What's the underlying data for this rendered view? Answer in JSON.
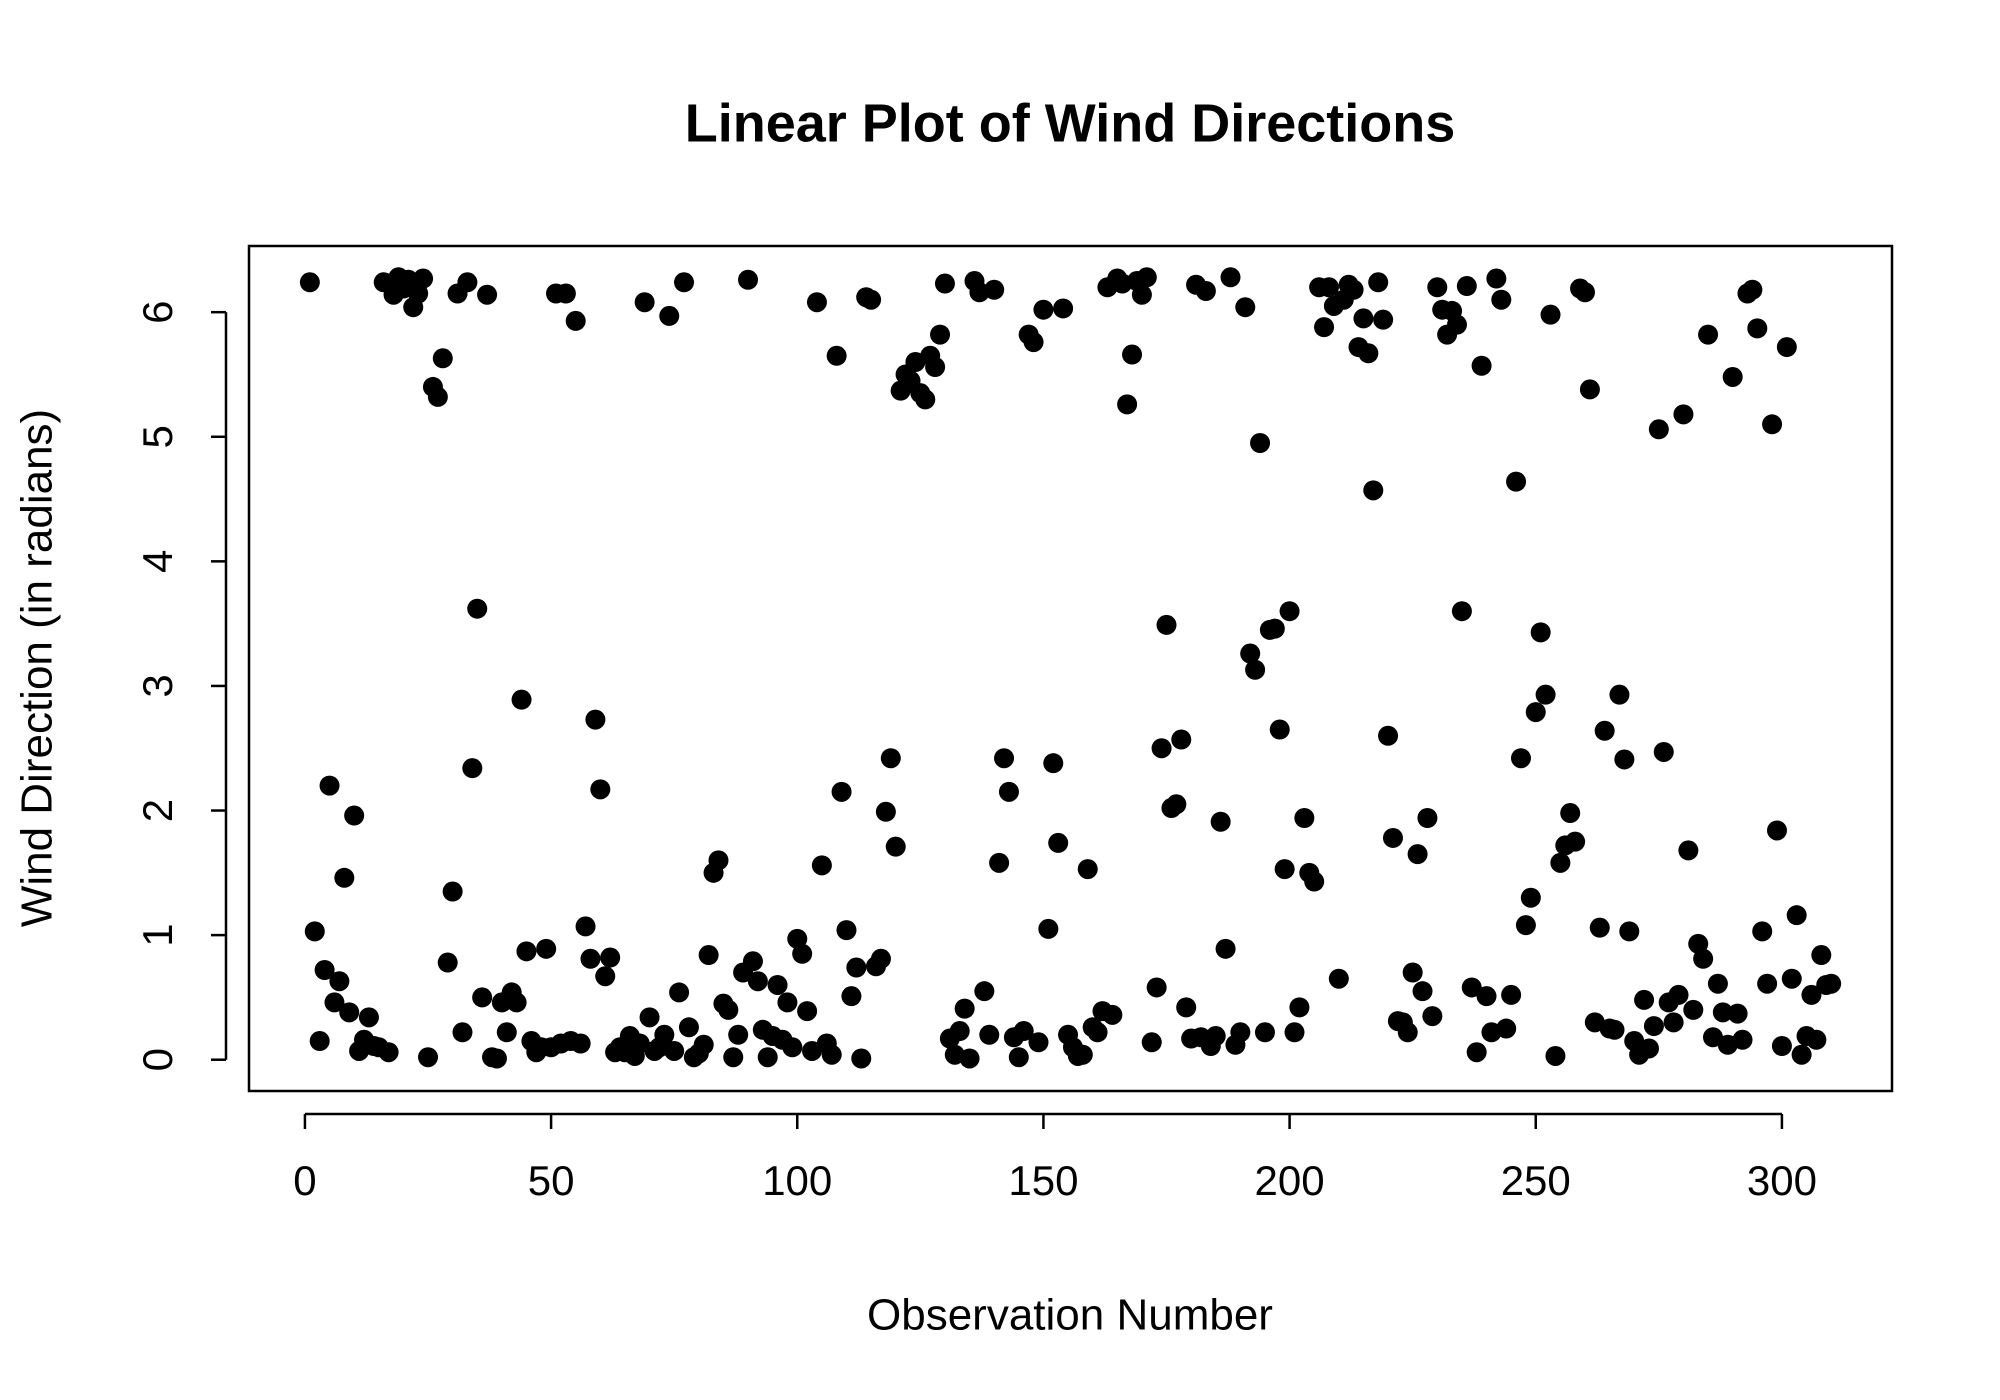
{
  "chart_data": {
    "type": "scatter",
    "title": "Linear Plot of Wind Directions",
    "x_label": "Observation Number",
    "y_label": "Wind Direction (in radians)",
    "xlim": [
      -11.36,
      322.36
    ],
    "ylim": [
      -0.2512,
      6.5312
    ],
    "xticks": [
      0,
      50,
      100,
      150,
      200,
      250,
      300
    ],
    "yticks": [
      0,
      1,
      2,
      3,
      4,
      5,
      6
    ],
    "color": "#000000",
    "x": [
      1,
      2,
      3,
      4,
      5,
      6,
      7,
      8,
      9,
      10,
      11,
      12,
      13,
      14,
      15,
      16,
      17,
      18,
      19,
      20,
      21,
      22,
      23,
      24,
      25,
      26,
      27,
      28,
      29,
      30,
      31,
      32,
      33,
      34,
      35,
      36,
      37,
      38,
      39,
      40,
      41,
      42,
      43,
      44,
      45,
      46,
      47,
      48,
      49,
      50,
      51,
      52,
      53,
      54,
      55,
      56,
      57,
      58,
      59,
      60,
      61,
      62,
      63,
      64,
      65,
      66,
      67,
      68,
      69,
      70,
      71,
      72,
      73,
      74,
      75,
      76,
      77,
      78,
      79,
      80,
      81,
      82,
      83,
      84,
      85,
      86,
      87,
      88,
      89,
      90,
      91,
      92,
      93,
      94,
      95,
      96,
      97,
      98,
      99,
      100,
      101,
      102,
      103,
      104,
      105,
      106,
      107,
      108,
      109,
      110,
      111,
      112,
      113,
      114,
      115,
      116,
      117,
      118,
      119,
      120,
      121,
      122,
      123,
      124,
      125,
      126,
      127,
      128,
      129,
      130,
      131,
      132,
      133,
      134,
      135,
      136,
      137,
      138,
      139,
      140,
      141,
      142,
      143,
      144,
      145,
      146,
      147,
      148,
      149,
      150,
      151,
      152,
      153,
      154,
      155,
      156,
      157,
      158,
      159,
      160,
      161,
      162,
      163,
      164,
      165,
      166,
      167,
      168,
      169,
      170,
      171,
      172,
      173,
      174,
      175,
      176,
      177,
      178,
      179,
      180,
      181,
      182,
      183,
      184,
      185,
      186,
      187,
      188,
      189,
      190,
      191,
      192,
      193,
      194,
      195,
      196,
      197,
      198,
      199,
      200,
      201,
      202,
      203,
      204,
      205,
      206,
      207,
      208,
      209,
      210,
      211,
      212,
      213,
      214,
      215,
      216,
      217,
      218,
      219,
      220,
      221,
      222,
      223,
      224,
      225,
      226,
      227,
      228,
      229,
      230,
      231,
      232,
      233,
      234,
      235,
      236,
      237,
      238,
      239,
      240,
      241,
      242,
      243,
      244,
      245,
      246,
      247,
      248,
      249,
      250,
      251,
      252,
      253,
      254,
      255,
      256,
      257,
      258,
      259,
      260,
      261,
      262,
      263,
      264,
      265,
      266,
      267,
      268,
      269,
      270,
      271,
      272,
      273,
      274,
      275,
      276,
      277,
      278,
      279,
      280,
      281,
      282,
      283,
      284,
      285,
      286,
      287,
      288,
      289,
      290,
      291,
      292,
      293,
      294,
      295,
      296,
      297,
      298,
      299,
      300,
      301,
      302,
      303,
      304,
      305,
      306,
      307,
      308,
      309,
      310
    ],
    "values": [
      6.24,
      1.03,
      0.15,
      0.72,
      2.2,
      0.46,
      0.63,
      1.46,
      0.38,
      1.96,
      0.07,
      0.16,
      0.34,
      0.11,
      0.1,
      6.24,
      0.06,
      6.14,
      6.28,
      6.19,
      6.26,
      6.04,
      6.15,
      6.27,
      0.02,
      5.4,
      5.32,
      5.63,
      0.78,
      1.35,
      6.15,
      0.22,
      6.24,
      2.34,
      3.62,
      0.5,
      6.14,
      0.02,
      0.01,
      0.46,
      0.22,
      0.54,
      0.46,
      2.89,
      0.87,
      0.15,
      0.06,
      0.1,
      0.89,
      0.1,
      6.15,
      0.13,
      6.15,
      0.15,
      5.93,
      0.13,
      1.07,
      0.81,
      2.73,
      2.17,
      0.67,
      0.82,
      0.06,
      0.1,
      0.06,
      0.19,
      0.03,
      0.13,
      6.08,
      0.34,
      0.07,
      0.1,
      0.2,
      5.97,
      0.07,
      0.54,
      6.24,
      0.26,
      0.02,
      0.05,
      0.12,
      0.84,
      1.5,
      1.6,
      0.45,
      0.4,
      0.02,
      0.2,
      0.7,
      6.26,
      0.79,
      0.63,
      0.24,
      0.02,
      0.19,
      0.6,
      0.16,
      0.46,
      0.1,
      0.97,
      0.85,
      0.39,
      0.07,
      6.08,
      1.56,
      0.13,
      0.04,
      5.65,
      2.15,
      1.04,
      0.51,
      0.74,
      0.01,
      6.12,
      6.1,
      0.75,
      0.81,
      1.99,
      2.42,
      1.71,
      5.37,
      5.5,
      5.45,
      5.6,
      5.35,
      5.3,
      5.65,
      5.56,
      5.82,
      6.23,
      0.17,
      0.04,
      0.23,
      0.41,
      0.01,
      6.25,
      6.16,
      0.55,
      0.2,
      6.18,
      1.58,
      2.42,
      2.15,
      0.18,
      0.02,
      0.23,
      5.82,
      5.76,
      0.14,
      6.02,
      1.05,
      2.38,
      1.74,
      6.03,
      0.2,
      0.1,
      0.03,
      0.04,
      1.53,
      0.26,
      0.22,
      0.39,
      6.2,
      0.36,
      6.27,
      6.23,
      5.26,
      5.66,
      6.25,
      6.14,
      6.28,
      0.14,
      0.58,
      2.5,
      3.49,
      2.02,
      2.05,
      2.57,
      0.42,
      0.17,
      6.22,
      0.18,
      6.17,
      0.11,
      0.19,
      1.91,
      0.89,
      6.28,
      0.12,
      0.22,
      6.04,
      3.26,
      3.13,
      4.95,
      0.22,
      3.45,
      3.46,
      2.65,
      1.53,
      3.6,
      0.22,
      0.42,
      1.94,
      1.5,
      1.43,
      6.2,
      5.88,
      6.2,
      6.05,
      0.65,
      6.1,
      6.22,
      6.18,
      5.72,
      5.95,
      5.67,
      4.57,
      6.24,
      5.94,
      2.6,
      1.78,
      0.31,
      0.3,
      0.22,
      0.7,
      1.65,
      0.55,
      1.94,
      0.35,
      6.2,
      6.02,
      5.82,
      6.01,
      5.9,
      3.6,
      6.21,
      0.58,
      0.06,
      5.57,
      0.51,
      0.22,
      6.27,
      6.1,
      0.25,
      0.52,
      4.64,
      2.42,
      1.08,
      1.3,
      2.79,
      3.43,
      2.93,
      5.98,
      0.03,
      1.58,
      1.72,
      1.98,
      1.75,
      6.19,
      6.16,
      5.38,
      0.3,
      1.06,
      2.64,
      0.25,
      0.24,
      2.93,
      2.41,
      1.03,
      0.15,
      0.04,
      0.48,
      0.09,
      0.27,
      5.06,
      2.47,
      0.46,
      0.3,
      0.52,
      5.18,
      1.68,
      0.4,
      0.93,
      0.81,
      5.82,
      0.18,
      0.61,
      0.38,
      0.12,
      5.48,
      0.37,
      0.16,
      6.15,
      6.18,
      5.87,
      1.03,
      0.61,
      5.1,
      1.84,
      0.11,
      5.72,
      0.65,
      1.16,
      0.04,
      0.19,
      0.52,
      0.16,
      0.84,
      0.6,
      0.61
    ]
  }
}
